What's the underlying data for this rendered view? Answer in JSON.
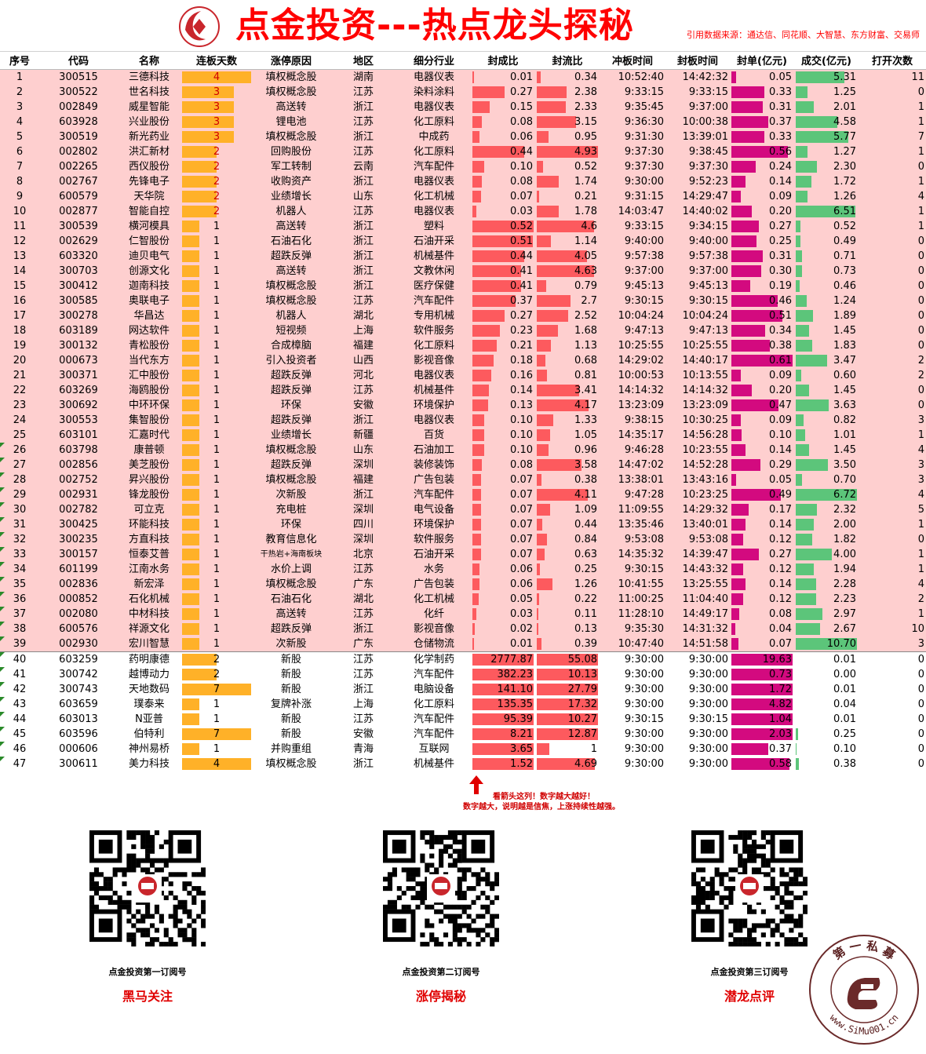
{
  "header": {
    "title": "点金投资---热点龙头探秘",
    "source_note": "引用数据来源：通达信、同花顺、大智慧、东方财富、交易师"
  },
  "colors": {
    "title_red": "#ff0000",
    "row_pink": "#fecfcf",
    "bar_orange": "#ffb128",
    "bar_red": "#fd5a5e",
    "bar_magenta": "#d30a7f",
    "bar_green": "#5cc57a"
  },
  "columns": [
    "序号",
    "代码",
    "名称",
    "连板天数",
    "涨停原因",
    "地区",
    "细分行业",
    "封成比",
    "封流比",
    "冲板时间",
    "封板时间",
    "封单(亿元)",
    "成交(亿元)",
    "打开次数"
  ],
  "rows": [
    {
      "idx": "1",
      "code": "300515",
      "name": "三德科技",
      "days": "4",
      "reason": "填权概念股",
      "region": "湖南",
      "industry": "电器仪表",
      "fcb": "0.01",
      "flb": "0.34",
      "t1": "10:52:40",
      "t2": "14:42:32",
      "fd": "0.05",
      "cj": "5.31",
      "open": "11"
    },
    {
      "idx": "2",
      "code": "300522",
      "name": "世名科技",
      "days": "3",
      "reason": "填权概念股",
      "region": "江苏",
      "industry": "染料涂料",
      "fcb": "0.27",
      "flb": "2.38",
      "t1": "9:33:15",
      "t2": "9:33:15",
      "fd": "0.33",
      "cj": "1.25",
      "open": "0"
    },
    {
      "idx": "3",
      "code": "002849",
      "name": "威星智能",
      "days": "3",
      "reason": "高送转",
      "region": "浙江",
      "industry": "电器仪表",
      "fcb": "0.15",
      "flb": "2.33",
      "t1": "9:35:45",
      "t2": "9:37:00",
      "fd": "0.31",
      "cj": "2.01",
      "open": "1"
    },
    {
      "idx": "4",
      "code": "603928",
      "name": "兴业股份",
      "days": "3",
      "reason": "锂电池",
      "region": "江苏",
      "industry": "化工原料",
      "fcb": "0.08",
      "flb": "3.15",
      "t1": "9:36:30",
      "t2": "10:00:38",
      "fd": "0.37",
      "cj": "4.58",
      "open": "1"
    },
    {
      "idx": "5",
      "code": "300519",
      "name": "新光药业",
      "days": "3",
      "reason": "填权概念股",
      "region": "浙江",
      "industry": "中成药",
      "fcb": "0.06",
      "flb": "0.95",
      "t1": "9:31:30",
      "t2": "13:39:01",
      "fd": "0.33",
      "cj": "5.77",
      "open": "7"
    },
    {
      "idx": "6",
      "code": "002802",
      "name": "洪汇新材",
      "days": "2",
      "reason": "回购股份",
      "region": "江苏",
      "industry": "化工原料",
      "fcb": "0.44",
      "flb": "4.93",
      "t1": "9:37:30",
      "t2": "9:38:45",
      "fd": "0.56",
      "cj": "1.27",
      "open": "1"
    },
    {
      "idx": "7",
      "code": "002265",
      "name": "西仪股份",
      "days": "2",
      "reason": "军工转制",
      "region": "云南",
      "industry": "汽车配件",
      "fcb": "0.10",
      "flb": "0.52",
      "t1": "9:37:30",
      "t2": "9:37:30",
      "fd": "0.24",
      "cj": "2.30",
      "open": "0"
    },
    {
      "idx": "8",
      "code": "002767",
      "name": "先锋电子",
      "days": "2",
      "reason": "收购资产",
      "region": "浙江",
      "industry": "电器仪表",
      "fcb": "0.08",
      "flb": "1.74",
      "t1": "9:30:00",
      "t2": "9:52:23",
      "fd": "0.14",
      "cj": "1.72",
      "open": "1"
    },
    {
      "idx": "9",
      "code": "600579",
      "name": "天华院",
      "days": "2",
      "reason": "业绩增长",
      "region": "山东",
      "industry": "化工机械",
      "fcb": "0.07",
      "flb": "0.21",
      "t1": "9:31:15",
      "t2": "14:29:47",
      "fd": "0.09",
      "cj": "1.26",
      "open": "4"
    },
    {
      "idx": "10",
      "code": "002877",
      "name": "智能自控",
      "days": "2",
      "reason": "机器人",
      "region": "江苏",
      "industry": "电器仪表",
      "fcb": "0.03",
      "flb": "1.78",
      "t1": "14:03:47",
      "t2": "14:40:02",
      "fd": "0.20",
      "cj": "6.51",
      "open": "1"
    },
    {
      "idx": "11",
      "code": "300539",
      "name": "横河模具",
      "days": "1",
      "reason": "高送转",
      "region": "浙江",
      "industry": "塑料",
      "fcb": "0.52",
      "flb": "4.6",
      "t1": "9:33:15",
      "t2": "9:34:15",
      "fd": "0.27",
      "cj": "0.52",
      "open": "1"
    },
    {
      "idx": "12",
      "code": "002629",
      "name": "仁智股份",
      "days": "1",
      "reason": "石油石化",
      "region": "浙江",
      "industry": "石油开采",
      "fcb": "0.51",
      "flb": "1.14",
      "t1": "9:40:00",
      "t2": "9:40:00",
      "fd": "0.25",
      "cj": "0.49",
      "open": "0"
    },
    {
      "idx": "13",
      "code": "603320",
      "name": "迪贝电气",
      "days": "1",
      "reason": "超跌反弹",
      "region": "浙江",
      "industry": "机械基件",
      "fcb": "0.44",
      "flb": "4.05",
      "t1": "9:57:38",
      "t2": "9:57:38",
      "fd": "0.31",
      "cj": "0.71",
      "open": "0"
    },
    {
      "idx": "14",
      "code": "300703",
      "name": "创源文化",
      "days": "1",
      "reason": "高送转",
      "region": "浙江",
      "industry": "文教休闲",
      "fcb": "0.41",
      "flb": "4.63",
      "t1": "9:37:00",
      "t2": "9:37:00",
      "fd": "0.30",
      "cj": "0.73",
      "open": "0"
    },
    {
      "idx": "15",
      "code": "300412",
      "name": "迦南科技",
      "days": "1",
      "reason": "填权概念股",
      "region": "浙江",
      "industry": "医疗保健",
      "fcb": "0.41",
      "flb": "0.79",
      "t1": "9:45:13",
      "t2": "9:45:13",
      "fd": "0.19",
      "cj": "0.46",
      "open": "0"
    },
    {
      "idx": "16",
      "code": "300585",
      "name": "奥联电子",
      "days": "1",
      "reason": "填权概念股",
      "region": "江苏",
      "industry": "汽车配件",
      "fcb": "0.37",
      "flb": "2.7",
      "t1": "9:30:15",
      "t2": "9:30:15",
      "fd": "0.46",
      "cj": "1.24",
      "open": "0"
    },
    {
      "idx": "17",
      "code": "300278",
      "name": "华昌达",
      "days": "1",
      "reason": "机器人",
      "region": "湖北",
      "industry": "专用机械",
      "fcb": "0.27",
      "flb": "2.52",
      "t1": "10:04:24",
      "t2": "10:04:24",
      "fd": "0.51",
      "cj": "1.89",
      "open": "0"
    },
    {
      "idx": "18",
      "code": "603189",
      "name": "网达软件",
      "days": "1",
      "reason": "短视频",
      "region": "上海",
      "industry": "软件服务",
      "fcb": "0.23",
      "flb": "1.68",
      "t1": "9:47:13",
      "t2": "9:47:13",
      "fd": "0.34",
      "cj": "1.45",
      "open": "0"
    },
    {
      "idx": "19",
      "code": "300132",
      "name": "青松股份",
      "days": "1",
      "reason": "合成樟脑",
      "region": "福建",
      "industry": "化工原料",
      "fcb": "0.21",
      "flb": "1.13",
      "t1": "10:25:55",
      "t2": "10:25:55",
      "fd": "0.38",
      "cj": "1.83",
      "open": "0"
    },
    {
      "idx": "20",
      "code": "000673",
      "name": "当代东方",
      "days": "1",
      "reason": "引入投资者",
      "region": "山西",
      "industry": "影视音像",
      "fcb": "0.18",
      "flb": "0.68",
      "t1": "14:29:02",
      "t2": "14:40:17",
      "fd": "0.61",
      "cj": "3.47",
      "open": "2"
    },
    {
      "idx": "21",
      "code": "300371",
      "name": "汇中股份",
      "days": "1",
      "reason": "超跌反弹",
      "region": "河北",
      "industry": "电器仪表",
      "fcb": "0.16",
      "flb": "0.81",
      "t1": "10:00:53",
      "t2": "10:13:55",
      "fd": "0.09",
      "cj": "0.60",
      "open": "2"
    },
    {
      "idx": "22",
      "code": "603269",
      "name": "海鸥股份",
      "days": "1",
      "reason": "超跌反弹",
      "region": "江苏",
      "industry": "机械基件",
      "fcb": "0.14",
      "flb": "3.41",
      "t1": "14:14:32",
      "t2": "14:14:32",
      "fd": "0.20",
      "cj": "1.45",
      "open": "0"
    },
    {
      "idx": "23",
      "code": "300692",
      "name": "中环环保",
      "days": "1",
      "reason": "环保",
      "region": "安徽",
      "industry": "环境保护",
      "fcb": "0.13",
      "flb": "4.17",
      "t1": "13:23:09",
      "t2": "13:23:09",
      "fd": "0.47",
      "cj": "3.63",
      "open": "0"
    },
    {
      "idx": "24",
      "code": "300553",
      "name": "集智股份",
      "days": "1",
      "reason": "超跌反弹",
      "region": "浙江",
      "industry": "电器仪表",
      "fcb": "0.10",
      "flb": "1.33",
      "t1": "9:38:15",
      "t2": "10:30:25",
      "fd": "0.09",
      "cj": "0.82",
      "open": "3"
    },
    {
      "idx": "25",
      "code": "603101",
      "name": "汇嘉时代",
      "days": "1",
      "reason": "业绩增长",
      "region": "新疆",
      "industry": "百货",
      "fcb": "0.10",
      "flb": "1.05",
      "t1": "14:35:17",
      "t2": "14:56:28",
      "fd": "0.10",
      "cj": "1.01",
      "open": "1"
    },
    {
      "idx": "26",
      "code": "603798",
      "name": "康普顿",
      "days": "1",
      "reason": "填权概念股",
      "region": "山东",
      "industry": "石油加工",
      "fcb": "0.10",
      "flb": "0.96",
      "t1": "9:46:28",
      "t2": "10:23:55",
      "fd": "0.14",
      "cj": "1.45",
      "open": "4"
    },
    {
      "idx": "27",
      "code": "002856",
      "name": "美芝股份",
      "days": "1",
      "reason": "超跌反弹",
      "region": "深圳",
      "industry": "装修装饰",
      "fcb": "0.08",
      "flb": "3.58",
      "t1": "14:47:02",
      "t2": "14:52:28",
      "fd": "0.29",
      "cj": "3.50",
      "open": "3"
    },
    {
      "idx": "28",
      "code": "002752",
      "name": "昇兴股份",
      "days": "1",
      "reason": "填权概念股",
      "region": "福建",
      "industry": "广告包装",
      "fcb": "0.07",
      "flb": "0.38",
      "t1": "13:38:01",
      "t2": "13:43:16",
      "fd": "0.05",
      "cj": "0.70",
      "open": "3"
    },
    {
      "idx": "29",
      "code": "002931",
      "name": "锋龙股份",
      "days": "1",
      "reason": "次新股",
      "region": "浙江",
      "industry": "汽车配件",
      "fcb": "0.07",
      "flb": "4.11",
      "t1": "9:47:28",
      "t2": "10:23:25",
      "fd": "0.49",
      "cj": "6.72",
      "open": "4"
    },
    {
      "idx": "30",
      "code": "002782",
      "name": "可立克",
      "days": "1",
      "reason": "充电桩",
      "region": "深圳",
      "industry": "电气设备",
      "fcb": "0.07",
      "flb": "1.09",
      "t1": "11:09:55",
      "t2": "14:29:32",
      "fd": "0.17",
      "cj": "2.32",
      "open": "5"
    },
    {
      "idx": "31",
      "code": "300425",
      "name": "环能科技",
      "days": "1",
      "reason": "环保",
      "region": "四川",
      "industry": "环境保护",
      "fcb": "0.07",
      "flb": "0.44",
      "t1": "13:35:46",
      "t2": "13:40:01",
      "fd": "0.14",
      "cj": "2.00",
      "open": "1"
    },
    {
      "idx": "32",
      "code": "300235",
      "name": "方直科技",
      "days": "1",
      "reason": "教育信息化",
      "region": "深圳",
      "industry": "软件服务",
      "fcb": "0.07",
      "flb": "0.84",
      "t1": "9:53:08",
      "t2": "9:53:08",
      "fd": "0.12",
      "cj": "1.82",
      "open": "0"
    },
    {
      "idx": "33",
      "code": "300157",
      "name": "恒泰艾普",
      "days": "1",
      "reason": "干热岩+海南板块",
      "region": "北京",
      "industry": "石油开采",
      "fcb": "0.07",
      "flb": "0.63",
      "t1": "14:35:32",
      "t2": "14:39:47",
      "fd": "0.27",
      "cj": "4.00",
      "open": "1"
    },
    {
      "idx": "34",
      "code": "601199",
      "name": "江南水务",
      "days": "1",
      "reason": "水价上调",
      "region": "江苏",
      "industry": "水务",
      "fcb": "0.06",
      "flb": "0.25",
      "t1": "9:30:15",
      "t2": "14:43:32",
      "fd": "0.12",
      "cj": "1.94",
      "open": "1"
    },
    {
      "idx": "35",
      "code": "002836",
      "name": "新宏泽",
      "days": "1",
      "reason": "填权概念股",
      "region": "广东",
      "industry": "广告包装",
      "fcb": "0.06",
      "flb": "1.26",
      "t1": "10:41:55",
      "t2": "13:25:55",
      "fd": "0.14",
      "cj": "2.28",
      "open": "4"
    },
    {
      "idx": "36",
      "code": "000852",
      "name": "石化机械",
      "days": "1",
      "reason": "石油石化",
      "region": "湖北",
      "industry": "化工机械",
      "fcb": "0.05",
      "flb": "0.22",
      "t1": "11:00:25",
      "t2": "11:04:40",
      "fd": "0.12",
      "cj": "2.23",
      "open": "2"
    },
    {
      "idx": "37",
      "code": "002080",
      "name": "中材科技",
      "days": "1",
      "reason": "高送转",
      "region": "江苏",
      "industry": "化纤",
      "fcb": "0.03",
      "flb": "0.11",
      "t1": "11:28:10",
      "t2": "14:49:17",
      "fd": "0.08",
      "cj": "2.97",
      "open": "1"
    },
    {
      "idx": "38",
      "code": "600576",
      "name": "祥源文化",
      "days": "1",
      "reason": "超跌反弹",
      "region": "浙江",
      "industry": "影视音像",
      "fcb": "0.02",
      "flb": "0.13",
      "t1": "9:35:30",
      "t2": "14:31:32",
      "fd": "0.04",
      "cj": "2.67",
      "open": "10"
    },
    {
      "idx": "39",
      "code": "002930",
      "name": "宏川智慧",
      "days": "1",
      "reason": "次新股",
      "region": "广东",
      "industry": "仓储物流",
      "fcb": "0.01",
      "flb": "0.39",
      "t1": "10:47:40",
      "t2": "14:51:58",
      "fd": "0.07",
      "cj": "10.70",
      "open": "3"
    },
    {
      "idx": "40",
      "code": "603259",
      "name": "药明康德",
      "days": "2",
      "reason": "新股",
      "region": "江苏",
      "industry": "化学制药",
      "fcb": "2777.87",
      "flb": "55.08",
      "t1": "9:30:00",
      "t2": "9:30:00",
      "fd": "19.63",
      "cj": "0.01",
      "open": "0"
    },
    {
      "idx": "41",
      "code": "300742",
      "name": "越博动力",
      "days": "2",
      "reason": "新股",
      "region": "江苏",
      "industry": "汽车配件",
      "fcb": "382.23",
      "flb": "10.13",
      "t1": "9:30:00",
      "t2": "9:30:00",
      "fd": "0.73",
      "cj": "0.00",
      "open": "0"
    },
    {
      "idx": "42",
      "code": "300743",
      "name": "天地数码",
      "days": "7",
      "reason": "新股",
      "region": "浙江",
      "industry": "电脑设备",
      "fcb": "141.10",
      "flb": "27.79",
      "t1": "9:30:00",
      "t2": "9:30:00",
      "fd": "1.72",
      "cj": "0.01",
      "open": "0"
    },
    {
      "idx": "43",
      "code": "603659",
      "name": "璞泰来",
      "days": "1",
      "reason": "复牌补涨",
      "region": "上海",
      "industry": "化工原料",
      "fcb": "135.35",
      "flb": "17.32",
      "t1": "9:30:00",
      "t2": "9:30:00",
      "fd": "4.82",
      "cj": "0.04",
      "open": "0"
    },
    {
      "idx": "44",
      "code": "603013",
      "name": "N亚普",
      "days": "1",
      "reason": "新股",
      "region": "江苏",
      "industry": "汽车配件",
      "fcb": "95.39",
      "flb": "10.27",
      "t1": "9:30:15",
      "t2": "9:30:15",
      "fd": "1.04",
      "cj": "0.01",
      "open": "0"
    },
    {
      "idx": "45",
      "code": "603596",
      "name": "伯特利",
      "days": "7",
      "reason": "新股",
      "region": "安徽",
      "industry": "汽车配件",
      "fcb": "8.21",
      "flb": "12.87",
      "t1": "9:30:00",
      "t2": "9:30:00",
      "fd": "2.03",
      "cj": "0.25",
      "open": "0"
    },
    {
      "idx": "46",
      "code": "000606",
      "name": "神州易桥",
      "days": "1",
      "reason": "并购重组",
      "region": "青海",
      "industry": "互联网",
      "fcb": "3.65",
      "flb": "1",
      "t1": "9:30:00",
      "t2": "9:30:00",
      "fd": "0.37",
      "cj": "0.10",
      "open": "0"
    },
    {
      "idx": "47",
      "code": "300611",
      "name": "美力科技",
      "days": "4",
      "reason": "填权概念股",
      "region": "浙江",
      "industry": "机械基件",
      "fcb": "1.52",
      "flb": "4.69",
      "t1": "9:30:00",
      "t2": "9:30:00",
      "fd": "0.58",
      "cj": "0.38",
      "open": "0"
    }
  ],
  "note": {
    "line1": "看箭头这列！数字越大越好！",
    "line2": "数字越大，说明越是信焦，上涨持续性越强。"
  },
  "qr_codes": [
    {
      "caption": "点金投资第一订阅号",
      "label": "黑马关注"
    },
    {
      "caption": "点金投资第二订阅号",
      "label": "涨停揭秘"
    },
    {
      "caption": "点金投资第三订阅号",
      "label": "潜龙点评"
    }
  ],
  "watermark": {
    "top_text": "第 一 私 募",
    "bottom_text": "www.SiMu001.cn"
  }
}
